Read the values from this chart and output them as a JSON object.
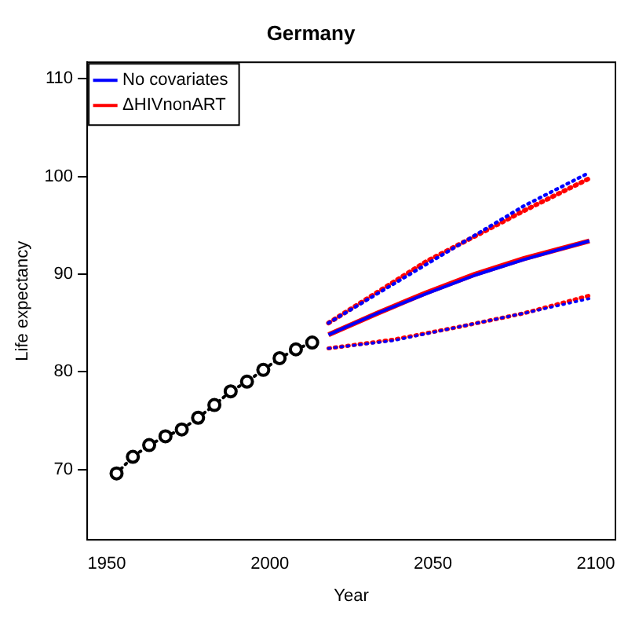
{
  "chart_data": {
    "type": "line",
    "title": "Germany",
    "xlabel": "Year",
    "ylabel": "Life expectancy",
    "xlim": [
      1944,
      2106
    ],
    "xticks": [
      1950,
      2000,
      2050,
      2100
    ],
    "ylim": [
      62.8,
      111.7
    ],
    "yticks": [
      70,
      80,
      90,
      100,
      110
    ],
    "grid": false,
    "legend": "top left",
    "series": [
      {
        "color": "#000000",
        "marker": "circle",
        "line_style": "dotted",
        "x": [
          1953,
          1958,
          1963,
          1968,
          1973,
          1978,
          1983,
          1988,
          1993,
          1998,
          2003,
          2008,
          2013
        ],
        "values": [
          69.6,
          71.3,
          72.5,
          73.4,
          74.1,
          75.3,
          76.6,
          78.0,
          79.0,
          80.2,
          81.4,
          82.3,
          83.0
        ]
      },
      {
        "name": "No covariates",
        "color": "#0000ff",
        "marker": "none",
        "line_style": "solid",
        "x": [
          2018,
          2033,
          2048,
          2063,
          2078,
          2098
        ],
        "values": [
          83.8,
          86.0,
          88.0,
          89.9,
          91.5,
          93.4
        ]
      },
      {
        "name": "ΔHIVnonART",
        "color": "#ff0000",
        "marker": "none",
        "line_style": "solid",
        "x": [
          2018,
          2033,
          2048,
          2063,
          2078,
          2098
        ],
        "values": [
          83.8,
          86.0,
          88.1,
          90.0,
          91.6,
          93.4
        ]
      },
      {
        "color": "#ff0000",
        "marker": "none",
        "line_style": "dotted",
        "x": [
          2018,
          2048,
          2078,
          2098
        ],
        "values": [
          85.0,
          91.3,
          96.5,
          99.8
        ]
      },
      {
        "color": "#ff0000",
        "marker": "none",
        "line_style": "dotted",
        "x": [
          2018,
          2038,
          2058,
          2078,
          2098
        ],
        "values": [
          82.4,
          83.3,
          84.6,
          86.0,
          87.8
        ]
      },
      {
        "color": "#0000ff",
        "marker": "none",
        "line_style": "dotted",
        "x": [
          2018,
          2048,
          2078,
          2098
        ],
        "values": [
          85.0,
          91.0,
          97.0,
          100.4
        ]
      },
      {
        "color": "#0000ff",
        "marker": "none",
        "line_style": "dotted",
        "x": [
          2018,
          2038,
          2058,
          2078,
          2098
        ],
        "values": [
          82.4,
          83.2,
          84.6,
          86.0,
          87.5
        ]
      }
    ]
  }
}
